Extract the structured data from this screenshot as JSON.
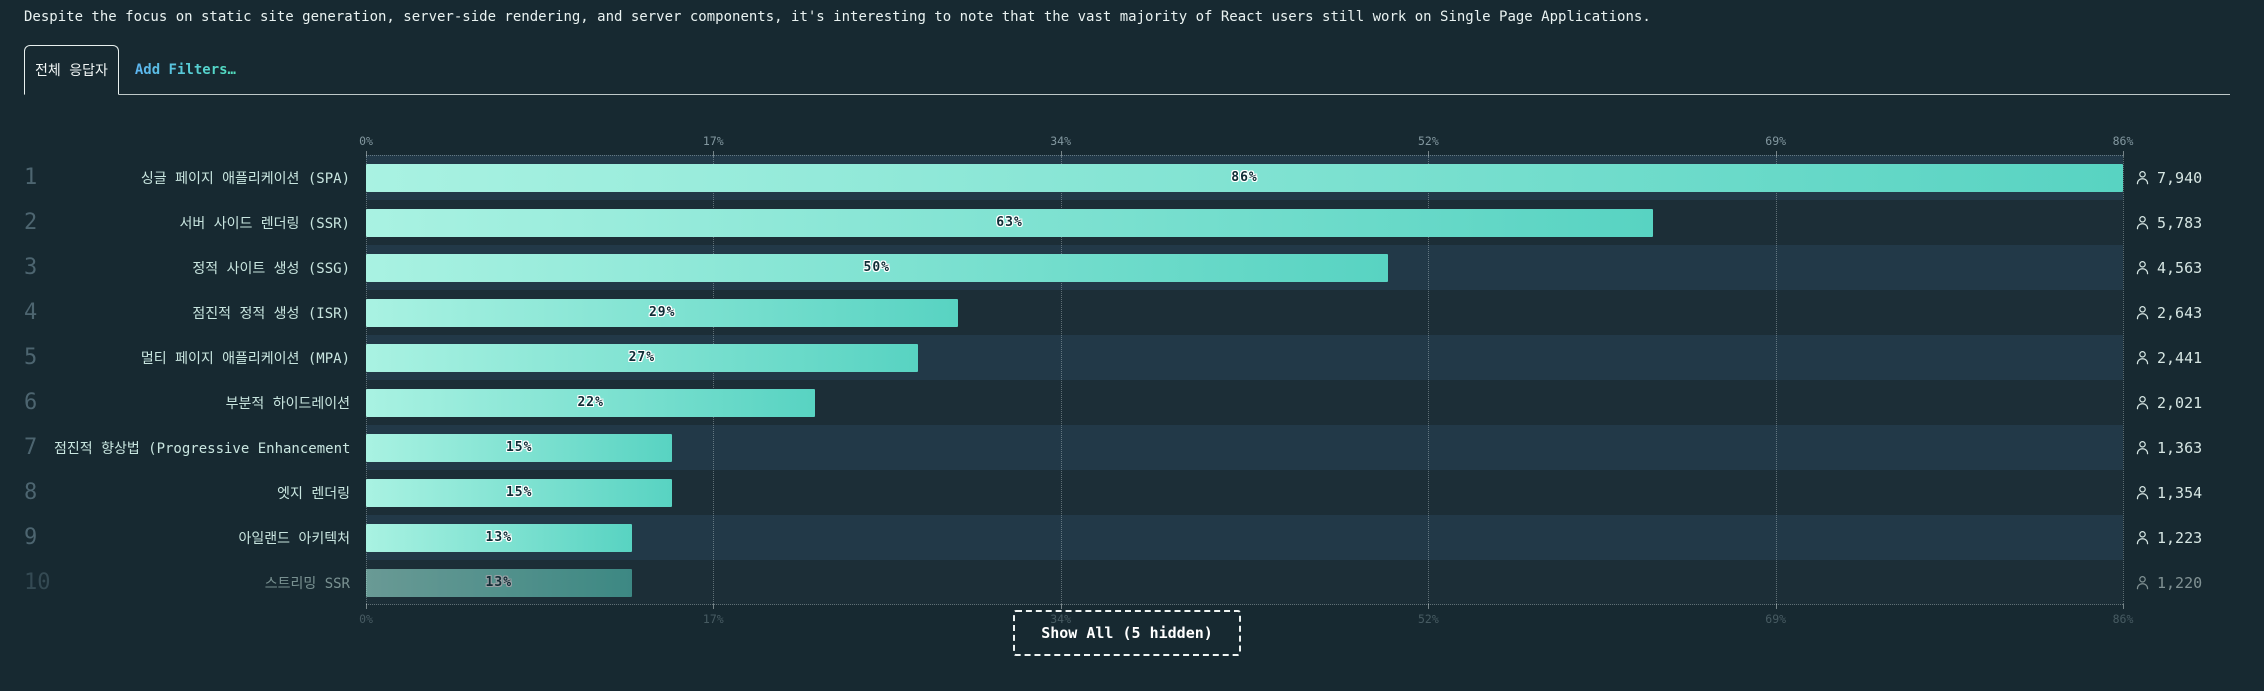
{
  "description": "Despite the focus on static site generation, server-side rendering, and server components, it's interesting to note that the vast majority of React users still work on Single Page Applications.",
  "filters": {
    "active_tab": "전체 응답자",
    "add_filters_label": "Add Filters…"
  },
  "chart_data": {
    "type": "bar",
    "orientation": "horizontal",
    "axis_max": 86,
    "axis_ticks_pct": [
      0,
      17,
      34,
      52,
      69,
      86
    ],
    "axis_tick_labels": [
      "0%",
      "17%",
      "34%",
      "52%",
      "69%",
      "86%"
    ],
    "grid": "dotted",
    "rows": [
      {
        "rank": 1,
        "label": "싱글 페이지 애플리케이션 (SPA)",
        "percent": 86,
        "percent_label": "86%",
        "respondents": 7940,
        "respondents_label": "7,940",
        "faded": false
      },
      {
        "rank": 2,
        "label": "서버 사이드 렌더링 (SSR)",
        "percent": 63,
        "percent_label": "63%",
        "respondents": 5783,
        "respondents_label": "5,783",
        "faded": false
      },
      {
        "rank": 3,
        "label": "정적 사이트 생성 (SSG)",
        "percent": 50,
        "percent_label": "50%",
        "respondents": 4563,
        "respondents_label": "4,563",
        "faded": false
      },
      {
        "rank": 4,
        "label": "점진적 정적 생성 (ISR)",
        "percent": 29,
        "percent_label": "29%",
        "respondents": 2643,
        "respondents_label": "2,643",
        "faded": false
      },
      {
        "rank": 5,
        "label": "멀티 페이지 애플리케이션 (MPA)",
        "percent": 27,
        "percent_label": "27%",
        "respondents": 2441,
        "respondents_label": "2,441",
        "faded": false
      },
      {
        "rank": 6,
        "label": "부분적 하이드레이션",
        "percent": 22,
        "percent_label": "22%",
        "respondents": 2021,
        "respondents_label": "2,021",
        "faded": false
      },
      {
        "rank": 7,
        "label": "점진적 향상법 (Progressive Enhancement)",
        "percent": 15,
        "percent_label": "15%",
        "respondents": 1363,
        "respondents_label": "1,363",
        "faded": false
      },
      {
        "rank": 8,
        "label": "엣지 렌더링",
        "percent": 15,
        "percent_label": "15%",
        "respondents": 1354,
        "respondents_label": "1,354",
        "faded": false
      },
      {
        "rank": 9,
        "label": "아일랜드 아키텍처",
        "percent": 13,
        "percent_label": "13%",
        "respondents": 1223,
        "respondents_label": "1,223",
        "faded": false
      },
      {
        "rank": 10,
        "label": "스트리밍 SSR",
        "percent": 13,
        "percent_label": "13%",
        "respondents": 1220,
        "respondents_label": "1,220",
        "faded": true
      }
    ]
  },
  "footer": {
    "show_all_label": "Show All (5 hidden)"
  },
  "colors": {
    "background": "#172931",
    "band_light": "#223948",
    "band_dark": "#1c2e37",
    "bar_gradient_start": "#a9f2e2",
    "bar_gradient_end": "#58d3c2",
    "accent_link_start": "#5db4f0",
    "accent_link_end": "#52e0be"
  }
}
